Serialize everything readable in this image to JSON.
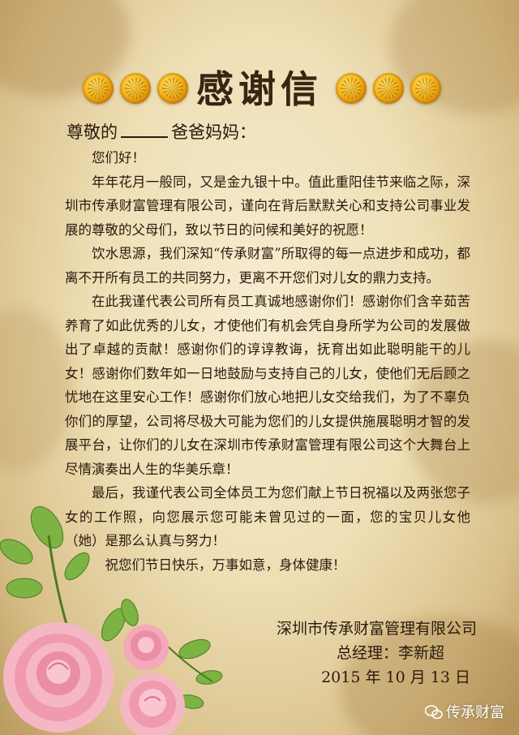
{
  "title": "感谢信",
  "salutation": {
    "before": "尊敬的",
    "after": "爸爸妈妈："
  },
  "paragraphs": [
    "您们好！",
    "年年花月一般同，又是金九银十中。值此重阳佳节来临之际，深圳市传承财富管理有限公司，谨向在背后默默关心和支持公司事业发展的尊敬的父母们，致以节日的问候和美好的祝愿！",
    "饮水思源，我们深知“传承财富”所取得的每一点进步和成功，都离不开所有员工的共同努力，更离不开您们对儿女的鼎力支持。",
    "在此我谨代表公司所有员工真诚地感谢你们！感谢你们含辛茹苦养育了如此优秀的儿女，才使他们有机会凭自身所学为公司的发展做出了卓越的贡献！感谢你们的谆谆教诲，抚育出如此聪明能干的儿女！感谢你们数年如一日地鼓励与支持自己的儿女，使他们无后顾之忧地在这里安心工作！感谢你们放心地把儿女交给我们，为了不辜负你们的厚望，公司将尽极大可能为您们的儿女提供施展聪明才智的发展平台，让你们的儿女在深圳市传承财富管理有限公司这个大舞台上尽情演奏出人生的华美乐章！",
    "最后，我谨代表公司全体员工为您们献上节日祝福以及两张您子女的工作照，向您展示您可能未曾见过的一面，您的宝贝儿女他（她）是那么认真与努力！",
    "祝您们节日快乐，万事如意，身体健康！"
  ],
  "signature": {
    "company": "深圳市传承财富管理有限公司",
    "manager": "总经理：李新超",
    "date": "2015 年 10 月 13 日"
  },
  "watermark": "传承财富",
  "colors": {
    "ink": "#2a1a0e",
    "paper": "#f0e2bb",
    "marigold": "#f3b417",
    "rose": "#f0a3b3"
  }
}
